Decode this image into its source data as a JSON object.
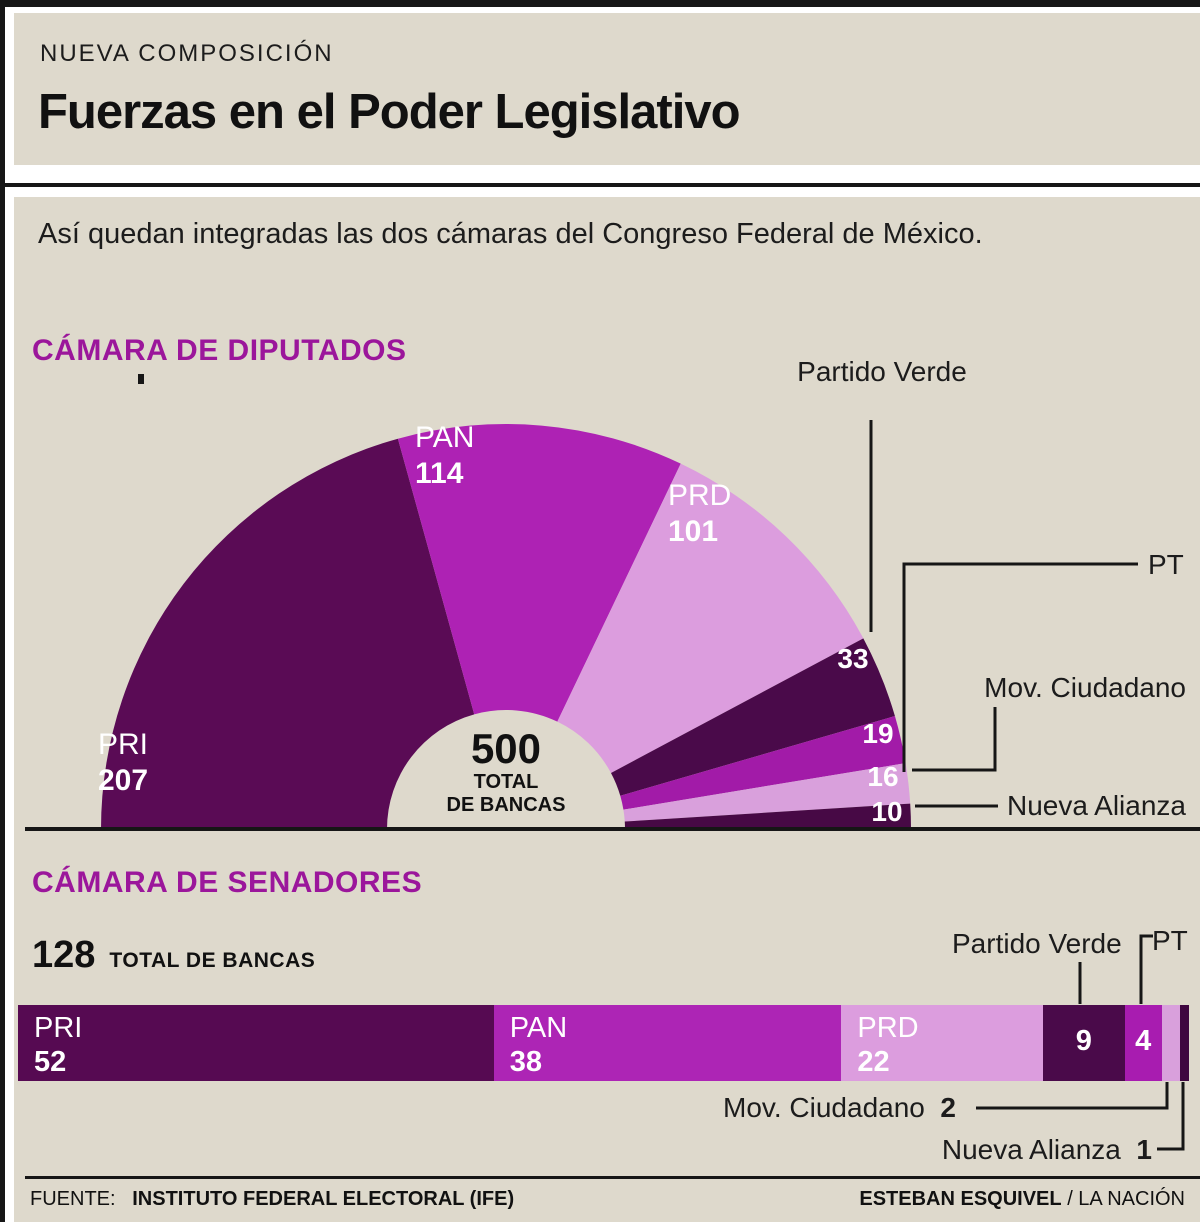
{
  "header": {
    "kicker": "NUEVA COMPOSICIÓN",
    "title": "Fuerzas en el Poder Legislativo",
    "subtitle": "Así quedan integradas las dos cámaras del Congreso Federal de México."
  },
  "colors": {
    "background": "#ded9cc",
    "frame": "#161616",
    "section_heading": "#9b169b",
    "white_labels": "#ffffff"
  },
  "footer": {
    "source_label": "FUENTE:",
    "source": "INSTITUTO FEDERAL ELECTORAL (IFE)",
    "credit": "ESTEBAN ESQUIVEL",
    "credit_suffix": " / LA NACIÓN"
  },
  "chart_data": [
    {
      "type": "pie",
      "variant": "semicircle-donut",
      "title": "CÁMARA DE DIPUTADOS",
      "total": 500,
      "center_value": "500",
      "center_label_line1": "TOTAL",
      "center_label_line2": "DE BANCAS",
      "legend_position": "on-chart",
      "series": [
        {
          "name": "PRI",
          "value": 207,
          "color": "#5a0b55"
        },
        {
          "name": "PAN",
          "value": 114,
          "color": "#ae22b4"
        },
        {
          "name": "PRD",
          "value": 101,
          "color": "#dc9dde"
        },
        {
          "name": "Partido Verde",
          "value": 33,
          "color": "#4a0a4a"
        },
        {
          "name": "PT",
          "value": 19,
          "color": "#a21ba8"
        },
        {
          "name": "Mov. Ciudadano",
          "value": 16,
          "color": "#d9a0dc"
        },
        {
          "name": "Nueva Alianza",
          "value": 10,
          "color": "#470945"
        }
      ]
    },
    {
      "type": "bar",
      "variant": "horizontal-stacked",
      "title": "CÁMARA DE SENADORES",
      "total": 128,
      "total_value": "128",
      "total_label": "TOTAL DE BANCAS",
      "legend_position": "on-chart",
      "series": [
        {
          "name": "PRI",
          "value": 52,
          "color": "#560a52"
        },
        {
          "name": "PAN",
          "value": 38,
          "color": "#ad25b5"
        },
        {
          "name": "PRD",
          "value": 22,
          "color": "#dc9dde"
        },
        {
          "name": "Partido Verde",
          "value": 9,
          "color": "#4a0a4a"
        },
        {
          "name": "PT",
          "value": 4,
          "color": "#a81cb0"
        },
        {
          "name": "Mov. Ciudadano",
          "value": 2,
          "color": "#d9a0dc"
        },
        {
          "name": "Nueva Alianza",
          "value": 1,
          "color": "#3f0740"
        }
      ]
    }
  ]
}
